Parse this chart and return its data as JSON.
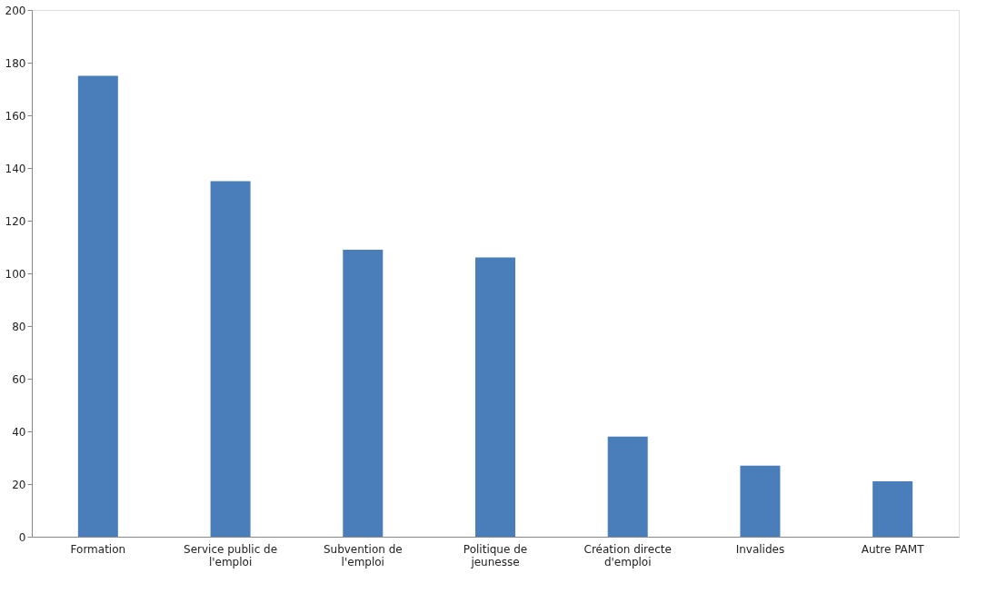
{
  "chart_data": {
    "type": "bar",
    "categories": [
      "Formation",
      "Service public de l'emploi",
      "Subvention de l'emploi",
      "Politique de jeunesse",
      "Création directe d'emploi",
      "Invalides",
      "Autre PAMT"
    ],
    "values": [
      175,
      135,
      109,
      106,
      38,
      27,
      21
    ],
    "color": "#4a7ebb",
    "ylim": [
      0,
      200
    ],
    "yticks": [
      0,
      20,
      40,
      60,
      80,
      100,
      120,
      140,
      160,
      180,
      200
    ],
    "grid": false
  }
}
